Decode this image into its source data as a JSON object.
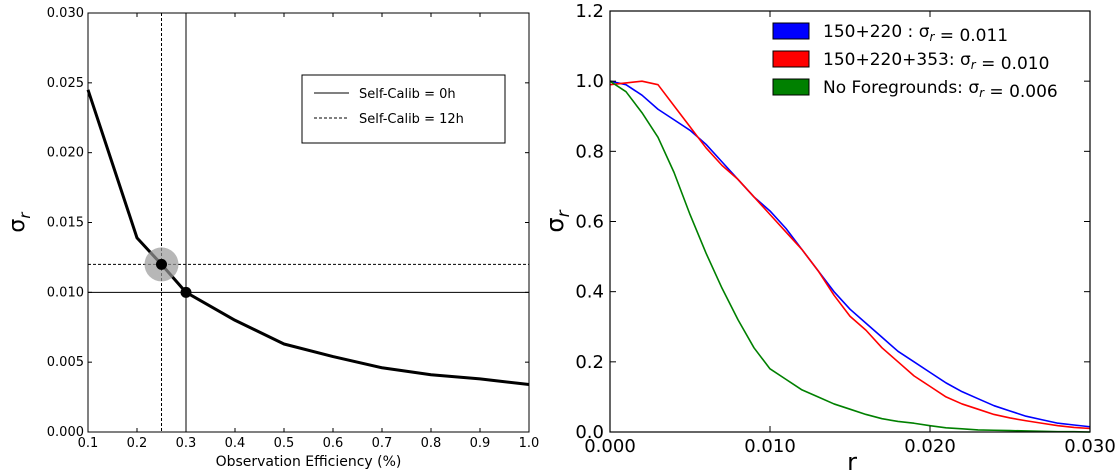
{
  "chart_data": [
    {
      "type": "line",
      "xlabel": "Observation Efficiency (%)",
      "ylabel": "σ_r",
      "xlim": [
        0.1,
        1.0
      ],
      "ylim": [
        0.0,
        0.03
      ],
      "x_ticks": [
        0.1,
        0.2,
        0.3,
        0.4,
        0.5,
        0.6,
        0.7,
        0.8,
        0.9,
        1.0
      ],
      "y_ticks": [
        0.0,
        0.005,
        0.01,
        0.015,
        0.02,
        0.025,
        0.03
      ],
      "x_tick_labels": [
        "0.1",
        "0.2",
        "0.3",
        "0.4",
        "0.5",
        "0.6",
        "0.7",
        "0.8",
        "0.9",
        "1.0"
      ],
      "y_tick_labels": [
        "0.000",
        "0.005",
        "0.010",
        "0.015",
        "0.020",
        "0.025",
        "0.030"
      ],
      "legend_position": "upper-right",
      "legend": [
        {
          "label": "Self-Calib = 0h",
          "style": "solid"
        },
        {
          "label": "Self-Calib = 12h",
          "style": "dashed"
        }
      ],
      "series": [
        {
          "x": [
            0.1,
            0.2,
            0.25,
            0.3,
            0.4,
            0.5,
            0.6,
            0.7,
            0.8,
            0.9,
            1.0
          ],
          "y": [
            0.0245,
            0.0139,
            0.012,
            0.01,
            0.008,
            0.0063,
            0.0054,
            0.0046,
            0.0041,
            0.0038,
            0.0034
          ],
          "color": "#000000"
        }
      ],
      "reference_lines": [
        {
          "orientation": "vertical",
          "value": 0.3,
          "style": "solid"
        },
        {
          "orientation": "horizontal",
          "value": 0.01,
          "style": "solid"
        },
        {
          "orientation": "vertical",
          "value": 0.25,
          "style": "dashed"
        },
        {
          "orientation": "horizontal",
          "value": 0.012,
          "style": "dashed"
        }
      ],
      "markers": [
        {
          "x": 0.25,
          "y": 0.012,
          "highlight": true
        },
        {
          "x": 0.3,
          "y": 0.01,
          "highlight": false
        }
      ],
      "grid": false
    },
    {
      "type": "line",
      "xlabel": "r",
      "ylabel": "σ_r",
      "xlim": [
        0.0,
        0.03
      ],
      "ylim": [
        0.0,
        1.2
      ],
      "x_ticks": [
        0.0,
        0.01,
        0.02,
        0.03
      ],
      "y_ticks": [
        0.0,
        0.2,
        0.4,
        0.6,
        0.8,
        1.0,
        1.2
      ],
      "x_tick_labels": [
        "0.000",
        "0.010",
        "0.020",
        "0.030"
      ],
      "y_tick_labels": [
        "0.0",
        "0.2",
        "0.4",
        "0.6",
        "0.8",
        "1.0",
        "1.2"
      ],
      "legend_position": "upper-right",
      "legend": [
        {
          "label": "150+220 : σ_r = 0.011",
          "color": "#0000ff"
        },
        {
          "label": "150+220+353: σ_r = 0.010",
          "color": "#ff0000"
        },
        {
          "label": "No Foregrounds: σ_r = 0.006",
          "color": "#008000"
        }
      ],
      "series": [
        {
          "name": "150+220 : σ_r = 0.011",
          "color": "#0000ff",
          "x": [
            0.0,
            0.001,
            0.002,
            0.003,
            0.004,
            0.005,
            0.006,
            0.007,
            0.008,
            0.009,
            0.01,
            0.011,
            0.012,
            0.013,
            0.014,
            0.015,
            0.016,
            0.017,
            0.018,
            0.019,
            0.02,
            0.021,
            0.022,
            0.023,
            0.024,
            0.025,
            0.026,
            0.027,
            0.028,
            0.029,
            0.03
          ],
          "y": [
            1.0,
            0.99,
            0.96,
            0.92,
            0.89,
            0.86,
            0.82,
            0.77,
            0.72,
            0.67,
            0.63,
            0.58,
            0.52,
            0.46,
            0.4,
            0.35,
            0.31,
            0.27,
            0.23,
            0.2,
            0.17,
            0.14,
            0.115,
            0.095,
            0.075,
            0.06,
            0.045,
            0.035,
            0.025,
            0.02,
            0.015
          ]
        },
        {
          "name": "150+220+353: σ_r = 0.010",
          "color": "#ff0000",
          "x": [
            0.0,
            0.001,
            0.002,
            0.003,
            0.004,
            0.005,
            0.006,
            0.007,
            0.008,
            0.009,
            0.01,
            0.011,
            0.012,
            0.013,
            0.014,
            0.015,
            0.016,
            0.017,
            0.018,
            0.019,
            0.02,
            0.021,
            0.022,
            0.023,
            0.024,
            0.025,
            0.026,
            0.027,
            0.028,
            0.029,
            0.03
          ],
          "y": [
            0.99,
            0.995,
            1.0,
            0.99,
            0.93,
            0.87,
            0.81,
            0.76,
            0.72,
            0.67,
            0.62,
            0.57,
            0.52,
            0.46,
            0.39,
            0.33,
            0.29,
            0.24,
            0.2,
            0.16,
            0.13,
            0.1,
            0.08,
            0.065,
            0.05,
            0.04,
            0.032,
            0.025,
            0.018,
            0.013,
            0.01
          ]
        },
        {
          "name": "No Foregrounds: σ_r = 0.006",
          "color": "#008000",
          "x": [
            0.0,
            0.001,
            0.002,
            0.003,
            0.004,
            0.005,
            0.006,
            0.007,
            0.008,
            0.009,
            0.01,
            0.011,
            0.012,
            0.013,
            0.014,
            0.015,
            0.016,
            0.017,
            0.018,
            0.019,
            0.02,
            0.021,
            0.022,
            0.023,
            0.024,
            0.025,
            0.026,
            0.027,
            0.028,
            0.029,
            0.03
          ],
          "y": [
            1.0,
            0.97,
            0.91,
            0.84,
            0.74,
            0.62,
            0.51,
            0.41,
            0.32,
            0.24,
            0.18,
            0.15,
            0.12,
            0.1,
            0.08,
            0.065,
            0.05,
            0.038,
            0.03,
            0.025,
            0.018,
            0.012,
            0.009,
            0.006,
            0.005,
            0.004,
            0.003,
            0.002,
            0.001,
            0.001,
            0.0
          ]
        }
      ],
      "grid": false
    }
  ]
}
